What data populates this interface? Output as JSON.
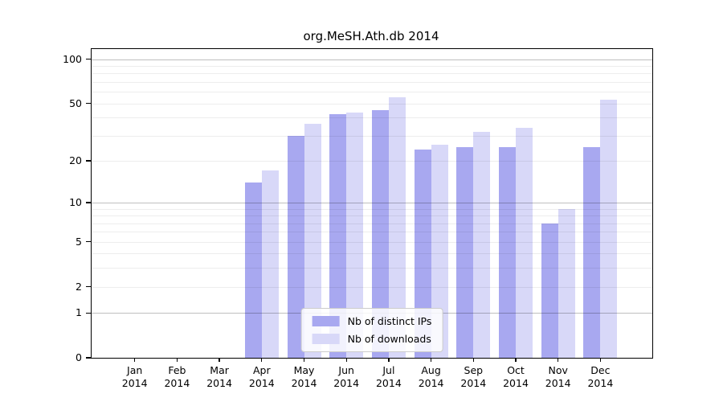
{
  "title": "org.MeSH.Ath.db 2014",
  "chart_data": {
    "type": "bar",
    "title": "org.MeSH.Ath.db 2014",
    "categories": [
      "Jan",
      "Feb",
      "Mar",
      "Apr",
      "May",
      "Jun",
      "Jul",
      "Aug",
      "Sep",
      "Oct",
      "Nov",
      "Dec"
    ],
    "year": "2014",
    "series": [
      {
        "name": "Nb of distinct IPs",
        "color": "#a8a8f0",
        "values": [
          0,
          0,
          0,
          14,
          30,
          42,
          45,
          24,
          25,
          25,
          7,
          25
        ]
      },
      {
        "name": "Nb of downloads",
        "color": "#d8d8f8",
        "values": [
          0,
          0,
          0,
          17,
          36,
          43,
          55,
          26,
          32,
          34,
          9,
          53
        ]
      }
    ],
    "xlabel": "",
    "ylabel": "",
    "y_scale": "log1p",
    "y_ticks": [
      0,
      1,
      2,
      5,
      10,
      20,
      50,
      100
    ],
    "y_grid_major": [
      1,
      10,
      100
    ],
    "y_grid_minor": [
      2,
      3,
      4,
      5,
      6,
      7,
      8,
      9,
      20,
      30,
      40,
      50,
      60,
      70,
      80,
      90
    ],
    "y_axis_max": 117,
    "grid": "horizontal",
    "legend_position": "lower center",
    "frame_color": "#000000",
    "background_color": "#ffffff"
  }
}
